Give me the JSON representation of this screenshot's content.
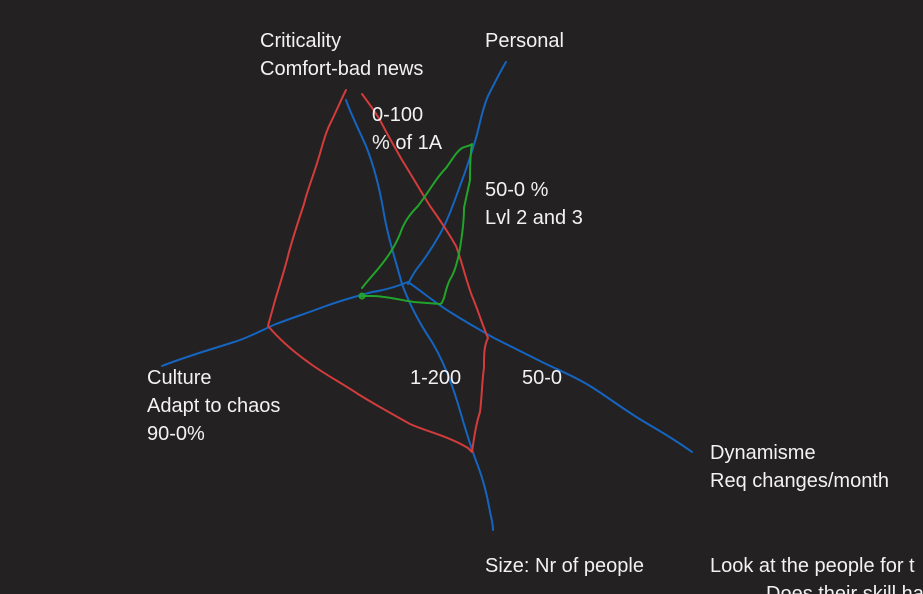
{
  "colors": {
    "background": "#232121",
    "text": "#f2f2f2",
    "axis_blue": "#1565c0",
    "profile_red": "#d23c3c",
    "profile_green": "#22a32c"
  },
  "axes": {
    "criticality": {
      "title": "Criticality",
      "subtitle": "Comfort-bad news",
      "range": "0-100",
      "unit": "% of 1A"
    },
    "personal": {
      "title": "Personal",
      "range": "50-0 %",
      "unit": "Lvl 2 and 3"
    },
    "dynamisme": {
      "title": "Dynamisme",
      "subtitle": "Req changes/month",
      "range": "50-0"
    },
    "size": {
      "title": "Size: Nr of people",
      "range": "1-200"
    },
    "culture": {
      "title": "Culture",
      "subtitle": "Adapt to chaos",
      "range": "90-0%"
    }
  },
  "notes": {
    "line1": "Look at the people for t",
    "line2": "Does their skill ha"
  }
}
